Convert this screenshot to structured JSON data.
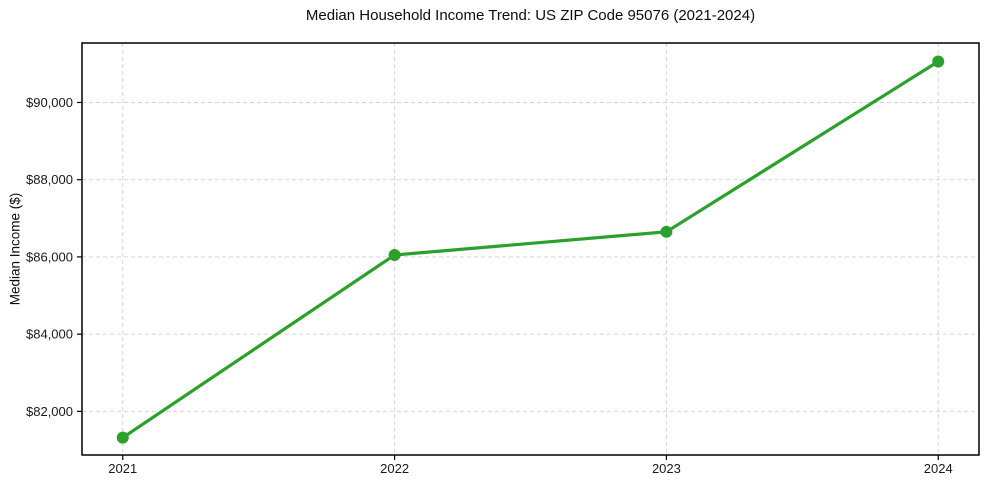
{
  "figure": {
    "title": "Median Household Income Trend: US ZIP Code 95076 (2021-2024)",
    "y_axis_label": "Median Income ($)"
  },
  "chart_data": {
    "type": "line",
    "title": "Median Household Income Trend: US ZIP Code 95076 (2021-2024)",
    "xlabel": "",
    "ylabel": "Median Income ($)",
    "x": [
      2021,
      2022,
      2023,
      2024
    ],
    "x_tick_labels": [
      "2021",
      "2022",
      "2023",
      "2024"
    ],
    "series": [
      {
        "values": [
          81320,
          86050,
          86650,
          91060
        ],
        "color": "#2ca02c",
        "marker": "circle"
      }
    ],
    "y_ticks": [
      {
        "value": 82000,
        "label": "$82,000"
      },
      {
        "value": 84000,
        "label": "$84,000"
      },
      {
        "value": 86000,
        "label": "$86,000"
      },
      {
        "value": 88000,
        "label": "$88,000"
      },
      {
        "value": 90000,
        "label": "$90,000"
      }
    ],
    "xlim": [
      2020.85,
      2024.15
    ],
    "ylim": [
      80870,
      91540
    ],
    "grid": true,
    "grid_style": "dashed",
    "legend": "none"
  },
  "colors": {
    "line": "#2ca02c",
    "grid": "#d5d5d5",
    "axis": "#000000",
    "text": "#1a1a1a",
    "background": "#ffffff"
  }
}
